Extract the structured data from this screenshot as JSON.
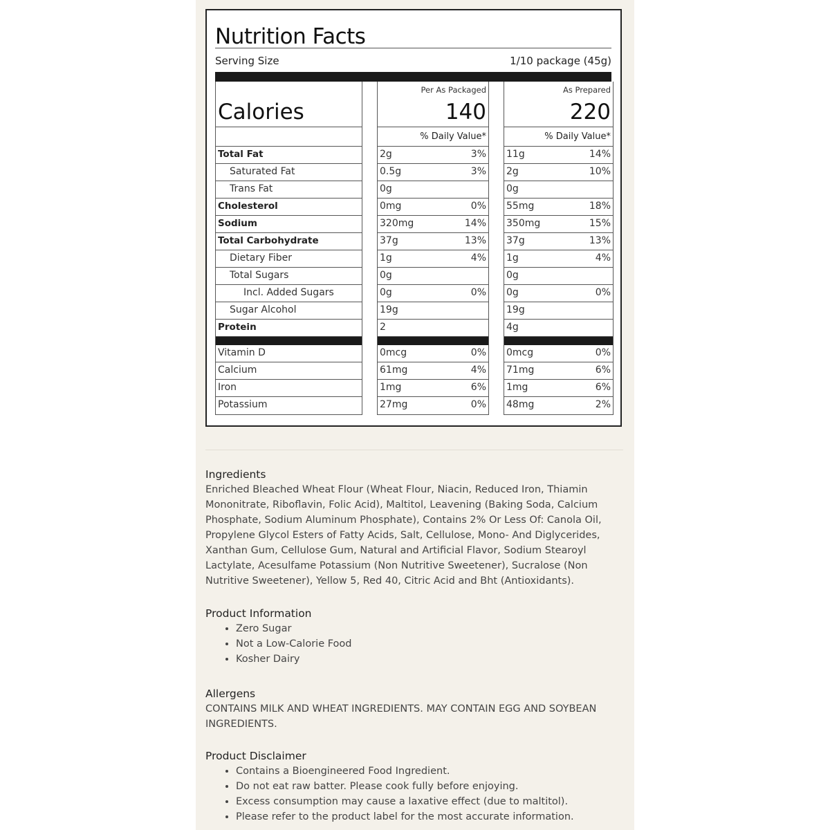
{
  "nutrition": {
    "title": "Nutrition Facts",
    "serving_label": "Serving Size",
    "serving_value": "1/10 package (45g)",
    "calories_label": "Calories",
    "columns": [
      {
        "header": "Per As Packaged",
        "calories": "140",
        "dv_label": "% Daily Value*"
      },
      {
        "header": "As Prepared",
        "calories": "220",
        "dv_label": "% Daily Value*"
      }
    ],
    "rows": [
      {
        "label": "Total Fat",
        "style": "b",
        "packaged": [
          "2g",
          "3%"
        ],
        "prepared": [
          "11g",
          "14%"
        ]
      },
      {
        "label": "Saturated Fat",
        "style": "i1",
        "packaged": [
          "0.5g",
          "3%"
        ],
        "prepared": [
          "2g",
          "10%"
        ]
      },
      {
        "label": "Trans Fat",
        "style": "i1",
        "packaged": [
          "0g",
          ""
        ],
        "prepared": [
          "0g",
          ""
        ]
      },
      {
        "label": "Cholesterol",
        "style": "b",
        "packaged": [
          "0mg",
          "0%"
        ],
        "prepared": [
          "55mg",
          "18%"
        ]
      },
      {
        "label": "Sodium",
        "style": "b",
        "packaged": [
          "320mg",
          "14%"
        ],
        "prepared": [
          "350mg",
          "15%"
        ]
      },
      {
        "label": "Total Carbohydrate",
        "style": "b",
        "packaged": [
          "37g",
          "13%"
        ],
        "prepared": [
          "37g",
          "13%"
        ]
      },
      {
        "label": "Dietary Fiber",
        "style": "i1",
        "packaged": [
          "1g",
          "4%"
        ],
        "prepared": [
          "1g",
          "4%"
        ]
      },
      {
        "label": "Total Sugars",
        "style": "i1",
        "packaged": [
          "0g",
          ""
        ],
        "prepared": [
          "0g",
          ""
        ]
      },
      {
        "label": "Incl. Added Sugars",
        "style": "i2",
        "packaged": [
          "0g",
          "0%"
        ],
        "prepared": [
          "0g",
          "0%"
        ]
      },
      {
        "label": "Sugar Alcohol",
        "style": "i1",
        "packaged": [
          "19g",
          ""
        ],
        "prepared": [
          "19g",
          ""
        ]
      },
      {
        "label": "Protein",
        "style": "b",
        "packaged": [
          "2",
          ""
        ],
        "prepared": [
          "4g",
          ""
        ]
      }
    ],
    "micro_rows": [
      {
        "label": "Vitamin D",
        "packaged": [
          "0mcg",
          "0%"
        ],
        "prepared": [
          "0mcg",
          "0%"
        ]
      },
      {
        "label": "Calcium",
        "packaged": [
          "61mg",
          "4%"
        ],
        "prepared": [
          "71mg",
          "6%"
        ]
      },
      {
        "label": "Iron",
        "packaged": [
          "1mg",
          "6%"
        ],
        "prepared": [
          "1mg",
          "6%"
        ]
      },
      {
        "label": "Potassium",
        "packaged": [
          "27mg",
          "0%"
        ],
        "prepared": [
          "48mg",
          "2%"
        ]
      }
    ]
  },
  "ingredients": {
    "heading": "Ingredients",
    "text": "Enriched Bleached Wheat Flour (Wheat Flour, Niacin, Reduced Iron, Thiamin Mononitrate, Riboflavin, Folic Acid), Maltitol, Leavening (Baking Soda, Calcium Phosphate, Sodium Aluminum Phosphate), Contains 2% Or Less Of: Canola Oil, Propylene Glycol Esters of Fatty Acids, Salt, Cellulose, Mono- And Diglycerides, Xanthan Gum, Cellulose Gum, Natural and Artificial Flavor, Sodium Stearoyl Lactylate, Acesulfame Potassium (Non Nutritive Sweetener), Sucralose (Non Nutritive Sweetener), Yellow 5, Red 40, Citric Acid and Bht (Antioxidants)."
  },
  "product_info": {
    "heading": "Product Information",
    "items": [
      "Zero Sugar",
      "Not a Low-Calorie Food",
      "Kosher Dairy"
    ]
  },
  "allergens": {
    "heading": "Allergens",
    "text": "CONTAINS MILK AND WHEAT INGREDIENTS. MAY CONTAIN EGG AND SOYBEAN INGREDIENTS."
  },
  "disclaimer": {
    "heading": "Product Disclaimer",
    "items": [
      "Contains a Bioengineered Food Ingredient.",
      "Do not eat raw batter. Please cook fully before enjoying.",
      "Excess consumption may cause a laxative effect (due to maltitol).",
      "Please refer to the product label for the most accurate information."
    ]
  }
}
